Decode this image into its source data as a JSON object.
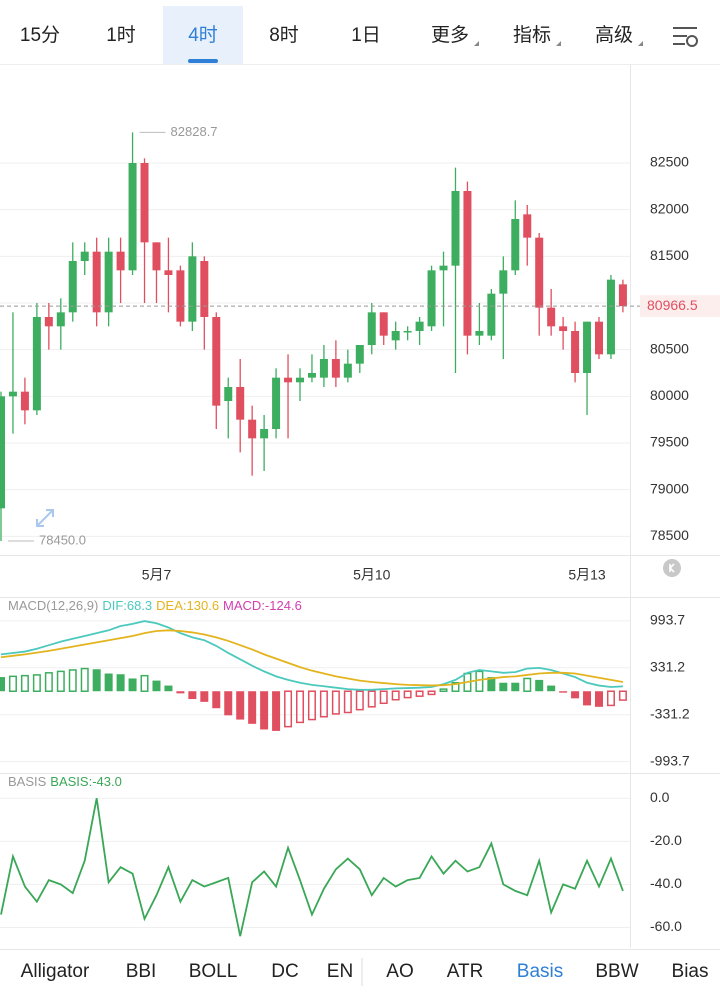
{
  "tabs": {
    "items": [
      "15分",
      "1时",
      "4时",
      "8时",
      "1日",
      "更多",
      "指标",
      "高级"
    ],
    "selected": 2
  },
  "indicator_tabs": {
    "items": [
      "Alligator",
      "BBI",
      "BOLL",
      "DC",
      "EN",
      "AO",
      "ATR",
      "Basis",
      "BBW",
      "Bias"
    ],
    "selected": 7
  },
  "chart_data": [
    {
      "type": "candlestick",
      "categories": [
        null,
        null,
        null,
        null,
        null,
        null,
        null,
        null,
        null,
        null,
        null,
        null,
        null,
        "5月7",
        null,
        null,
        null,
        null,
        null,
        null,
        null,
        null,
        null,
        null,
        null,
        null,
        null,
        null,
        null,
        null,
        null,
        "5月10",
        null,
        null,
        null,
        null,
        null,
        null,
        null,
        null,
        null,
        null,
        null,
        null,
        null,
        null,
        null,
        null,
        null,
        "5月13",
        null,
        null,
        null
      ],
      "open": [
        78800,
        80000,
        80050,
        79850,
        80850,
        80750,
        80900,
        81450,
        81550,
        80900,
        81550,
        81350,
        82500,
        81650,
        81350,
        81350,
        80800,
        81450,
        80850,
        79950,
        80100,
        79750,
        79550,
        79650,
        80200,
        80150,
        80200,
        80200,
        80400,
        80200,
        80350,
        80550,
        80900,
        80600,
        80700,
        80700,
        80750,
        81350,
        81400,
        82200,
        80650,
        80650,
        81100,
        81350,
        81950,
        81700,
        80950,
        80750,
        80700,
        80250,
        80800,
        80450,
        81200
      ],
      "high": [
        80050,
        80900,
        80200,
        81000,
        81000,
        81050,
        81650,
        81650,
        81700,
        81700,
        81700,
        82828.7,
        82550,
        81650,
        81700,
        81400,
        81650,
        81500,
        80900,
        80200,
        80400,
        79900,
        79800,
        80300,
        80450,
        80300,
        80450,
        80550,
        80600,
        80500,
        80550,
        81000,
        80900,
        80800,
        80750,
        80850,
        81400,
        81550,
        82450,
        82300,
        81000,
        81150,
        81500,
        82100,
        82050,
        81750,
        81150,
        80850,
        80800,
        80800,
        80850,
        81300,
        81250
      ],
      "low": [
        78450,
        79600,
        79700,
        79800,
        80500,
        80500,
        80800,
        81300,
        80750,
        80750,
        81000,
        81300,
        81000,
        81000,
        80900,
        80750,
        80700,
        80500,
        79650,
        79550,
        79400,
        79150,
        79200,
        79550,
        79550,
        79950,
        80150,
        80100,
        80100,
        80150,
        80250,
        80450,
        80550,
        80500,
        80600,
        80550,
        80700,
        80750,
        80250,
        80450,
        80550,
        80600,
        80400,
        81300,
        81400,
        80650,
        80650,
        80500,
        80150,
        79800,
        80400,
        80400,
        80900
      ],
      "close": [
        80000,
        80050,
        79850,
        80850,
        80750,
        80900,
        81450,
        81550,
        80900,
        81550,
        81350,
        82500,
        81650,
        81350,
        81300,
        80800,
        81500,
        80850,
        79900,
        80100,
        79750,
        79550,
        79650,
        80200,
        80150,
        80200,
        80250,
        80400,
        80200,
        80350,
        80550,
        80900,
        80650,
        80700,
        80700,
        80800,
        81350,
        81400,
        82200,
        80650,
        80700,
        81100,
        81350,
        81900,
        81700,
        80950,
        80750,
        80700,
        80250,
        80800,
        80450,
        81250,
        80966.5
      ],
      "up_color": "#3dae5f",
      "down_color": "#e04f5f",
      "ylim": [
        78300,
        83550
      ],
      "yticks": [
        78500,
        79000,
        79500,
        80000,
        80500,
        81000,
        81500,
        82000,
        82500
      ],
      "last_price": 80966.5,
      "annotations": [
        {
          "text": "82828.7",
          "value": 82828.7
        },
        {
          "text": "78450.0",
          "value": 78450
        }
      ]
    },
    {
      "type": "macd",
      "indicator": "MACD(12,26,9)",
      "series": [
        {
          "label": "DIF:68.3",
          "color": "#4cc9bd",
          "values": [
            520,
            540,
            560,
            600,
            650,
            700,
            740,
            780,
            820,
            860,
            920,
            950,
            990,
            960,
            900,
            820,
            760,
            720,
            640,
            540,
            450,
            360,
            280,
            210,
            160,
            120,
            90,
            70,
            50,
            30,
            20,
            20,
            30,
            40,
            45,
            50,
            60,
            100,
            160,
            260,
            300,
            280,
            260,
            270,
            320,
            330,
            300,
            250,
            200,
            120,
            80,
            60,
            68.3
          ]
        },
        {
          "label": "DEA:130.6",
          "color": "#e3b41e",
          "values": [
            480,
            500,
            520,
            545,
            570,
            600,
            630,
            660,
            690,
            720,
            750,
            780,
            820,
            850,
            860,
            850,
            830,
            800,
            760,
            710,
            650,
            590,
            520,
            460,
            400,
            340,
            290,
            250,
            210,
            180,
            150,
            130,
            115,
            100,
            90,
            85,
            82,
            85,
            100,
            130,
            160,
            180,
            200,
            210,
            230,
            250,
            260,
            260,
            250,
            220,
            190,
            160,
            130.6
          ]
        }
      ],
      "histogram": {
        "label": "MACD:-124.6",
        "color": "#d23fb0",
        "up_color": "#3dae5f",
        "down_color": "#e04f5f",
        "values": [
          200,
          210,
          220,
          230,
          260,
          280,
          300,
          320,
          310,
          250,
          240,
          180,
          220,
          150,
          80,
          -30,
          -110,
          -150,
          -240,
          -340,
          -400,
          -460,
          -540,
          -560,
          -500,
          -440,
          -400,
          -360,
          -320,
          -300,
          -260,
          -220,
          -170,
          -120,
          -90,
          -70,
          -45,
          30,
          120,
          250,
          280,
          200,
          120,
          120,
          180,
          160,
          80,
          -20,
          -100,
          -200,
          -220,
          -200,
          -124.6
        ]
      },
      "ylim": [
        -1140,
        1330
      ],
      "yticks": [
        -993.7,
        -331.2,
        331.2,
        993.7
      ]
    },
    {
      "type": "line",
      "indicator": "BASIS",
      "series": [
        {
          "label": "BASIS:-43.0",
          "color": "#3aa757",
          "values": [
            -54,
            -27,
            -41,
            -48,
            -38,
            -40,
            -44,
            -29,
            0,
            -39,
            -32,
            -35,
            -56,
            -45,
            -32,
            -48,
            -38,
            -41,
            -39,
            -37,
            -64,
            -39,
            -34,
            -41,
            -23,
            -38,
            -54,
            -42,
            -33,
            -28,
            -33,
            -45,
            -37,
            -41,
            -38,
            -37,
            -27,
            -35,
            -29,
            -34,
            -32,
            -21,
            -40,
            -43,
            -45,
            -29,
            -53,
            -40,
            -42,
            -29,
            -41,
            -28,
            -43
          ]
        }
      ],
      "ylim": [
        -69.5,
        11.7
      ],
      "yticks": [
        {
          "value": -60,
          "label": "-60.0"
        },
        {
          "value": -40,
          "label": "-40.0"
        },
        {
          "value": -20,
          "label": "-20.0"
        },
        {
          "value": 0,
          "label": "0.0"
        }
      ]
    }
  ]
}
